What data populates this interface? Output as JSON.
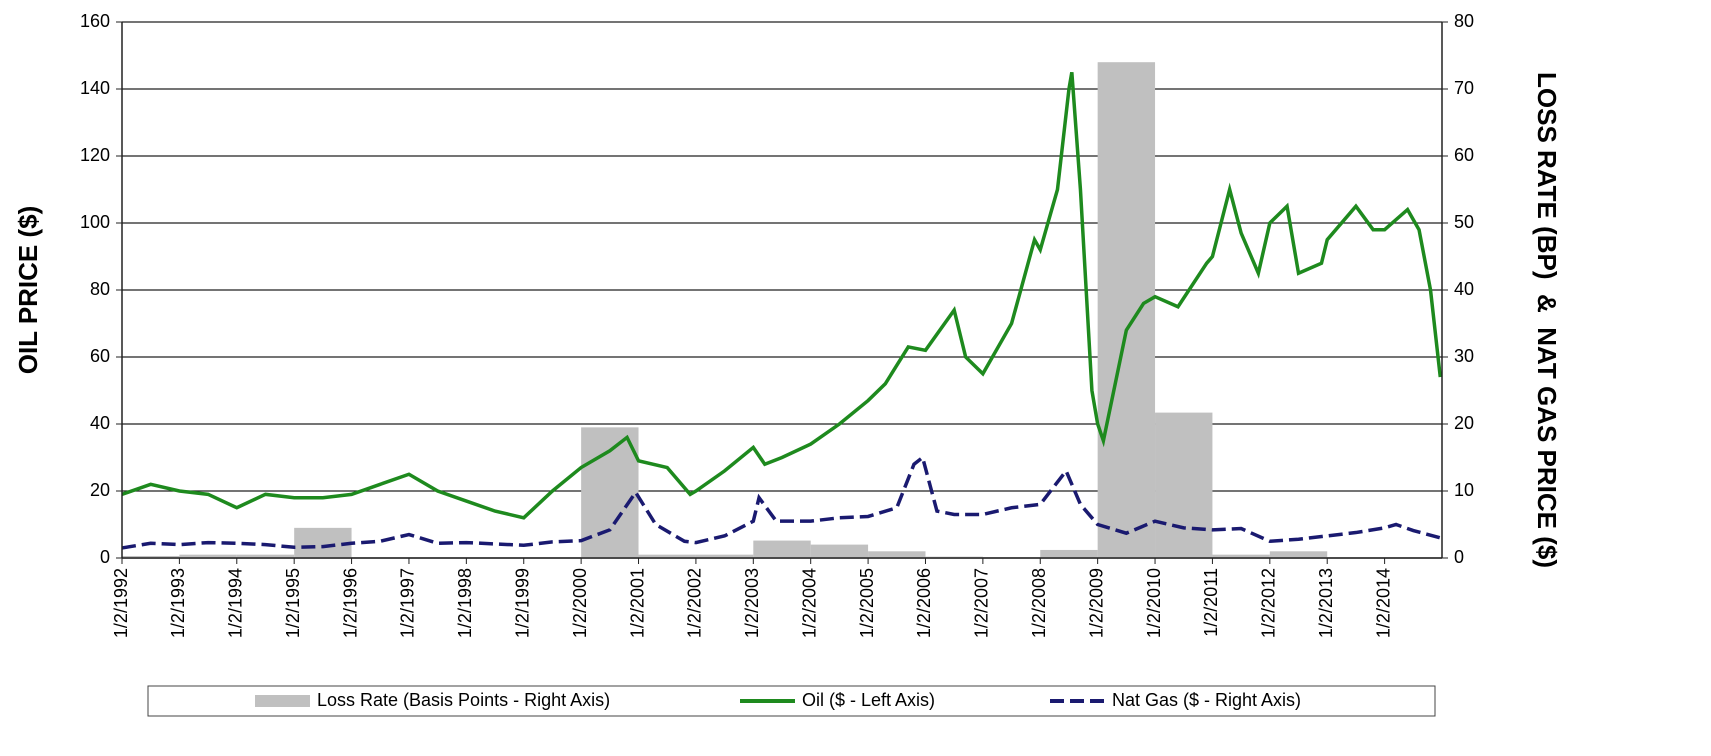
{
  "chart_data": {
    "type": "combo",
    "ylabel": "OIL PRICE ($)",
    "y2label": "LOSS RATE (BP)  &  NAT GAS PRICE ($)",
    "xlim": [
      1992,
      2015
    ],
    "xticks": [
      {
        "value": 1992,
        "label": "1/2/1992"
      },
      {
        "value": 1993,
        "label": "1/2/1993"
      },
      {
        "value": 1994,
        "label": "1/2/1994"
      },
      {
        "value": 1995,
        "label": "1/2/1995"
      },
      {
        "value": 1996,
        "label": "1/2/1996"
      },
      {
        "value": 1997,
        "label": "1/2/1997"
      },
      {
        "value": 1998,
        "label": "1/2/1998"
      },
      {
        "value": 1999,
        "label": "1/2/1999"
      },
      {
        "value": 2000,
        "label": "1/2/2000"
      },
      {
        "value": 2001,
        "label": "1/2/2001"
      },
      {
        "value": 2002,
        "label": "1/2/2002"
      },
      {
        "value": 2003,
        "label": "1/2/2003"
      },
      {
        "value": 2004,
        "label": "1/2/2004"
      },
      {
        "value": 2005,
        "label": "1/2/2005"
      },
      {
        "value": 2006,
        "label": "1/2/2006"
      },
      {
        "value": 2007,
        "label": "1/2/2007"
      },
      {
        "value": 2008,
        "label": "1/2/2008"
      },
      {
        "value": 2009,
        "label": "1/2/2009"
      },
      {
        "value": 2010,
        "label": "1/2/2010"
      },
      {
        "value": 2011,
        "label": "1/2/2011"
      },
      {
        "value": 2012,
        "label": "1/2/2012"
      },
      {
        "value": 2013,
        "label": "1/2/2013"
      },
      {
        "value": 2014,
        "label": "1/2/2014"
      }
    ],
    "ylim": [
      0,
      160
    ],
    "yticks": [
      0,
      20,
      40,
      60,
      80,
      100,
      120,
      140,
      160
    ],
    "y2lim": [
      0,
      80
    ],
    "y2ticks": [
      0,
      10,
      20,
      30,
      40,
      50,
      60,
      70,
      80
    ],
    "grid": true,
    "legend": "bottom",
    "series": [
      {
        "name": "Loss Rate (Basis Points - Right Axis)",
        "kind": "bar",
        "axis": "y2",
        "color": "#c0c0c0",
        "x": [
          1992,
          1993,
          1994,
          1995,
          1996,
          1997,
          1998,
          1999,
          2000,
          2001,
          2002,
          2003,
          2004,
          2005,
          2006,
          2007,
          2008,
          2009,
          2010,
          2011,
          2012,
          2013,
          2014
        ],
        "values": [
          0.3,
          0.5,
          0.5,
          4.5,
          0,
          0,
          0,
          0,
          19.5,
          0.5,
          0.5,
          2.6,
          2,
          1,
          0.2,
          0,
          1.2,
          74,
          21.7,
          0.5,
          1,
          0,
          0
        ]
      },
      {
        "name": "Oil ($ - Left Axis)",
        "kind": "line",
        "axis": "y",
        "color": "#1e8a1e",
        "x": [
          1992,
          1992.5,
          1993,
          1993.5,
          1994,
          1994.5,
          1995,
          1995.5,
          1996,
          1996.5,
          1997,
          1997.5,
          1998,
          1998.5,
          1999,
          1999.5,
          2000,
          2000.5,
          2000.8,
          2001,
          2001.5,
          2001.9,
          2002,
          2002.5,
          2003,
          2003.2,
          2003.5,
          2004,
          2004.5,
          2005,
          2005.3,
          2005.7,
          2006,
          2006.5,
          2006.7,
          2007,
          2007.5,
          2007.9,
          2008,
          2008.3,
          2008.5,
          2008.55,
          2008.7,
          2008.9,
          2009,
          2009.1,
          2009.5,
          2009.8,
          2010,
          2010.4,
          2010.9,
          2011,
          2011.3,
          2011.5,
          2011.8,
          2012,
          2012.3,
          2012.5,
          2012.9,
          2013,
          2013.5,
          2013.8,
          2014,
          2014.4,
          2014.6,
          2014.8,
          2014.97
        ],
        "values": [
          19,
          22,
          20,
          19,
          15,
          19,
          18,
          18,
          19,
          22,
          25,
          20,
          17,
          14,
          12,
          20,
          27,
          32,
          36,
          29,
          27,
          19,
          20,
          26,
          33,
          28,
          30,
          34,
          40,
          47,
          52,
          63,
          62,
          74,
          60,
          55,
          70,
          95,
          92,
          110,
          140,
          145,
          110,
          50,
          40,
          35,
          68,
          76,
          78,
          75,
          88,
          90,
          110,
          97,
          85,
          100,
          105,
          85,
          88,
          95,
          105,
          98,
          98,
          104,
          98,
          80,
          54
        ]
      },
      {
        "name": "Nat Gas ($ - Right Axis)",
        "kind": "dashed",
        "axis": "y2",
        "color": "#1a1a70",
        "x": [
          1992,
          1992.5,
          1993,
          1993.5,
          1994,
          1994.5,
          1995,
          1995.5,
          1996,
          1996.5,
          1997,
          1997.5,
          1998,
          1998.5,
          1999,
          1999.5,
          2000,
          2000.5,
          2000.95,
          2001.3,
          2001.8,
          2002,
          2002.5,
          2003,
          2003.1,
          2003.4,
          2004,
          2004.5,
          2005,
          2005.5,
          2005.8,
          2005.95,
          2006.2,
          2006.5,
          2007,
          2007.5,
          2008,
          2008.45,
          2008.7,
          2009,
          2009.5,
          2010,
          2010.5,
          2011,
          2011.5,
          2012,
          2012.5,
          2013,
          2013.5,
          2014,
          2014.2,
          2014.5,
          2014.97
        ],
        "values": [
          1.5,
          2.2,
          2,
          2.3,
          2.2,
          2,
          1.6,
          1.7,
          2.2,
          2.5,
          3.5,
          2.2,
          2.3,
          2.1,
          1.9,
          2.4,
          2.6,
          4.2,
          9.8,
          5,
          2.5,
          2.3,
          3.3,
          5.5,
          9,
          5.5,
          5.5,
          6,
          6.2,
          7.5,
          14,
          15,
          7,
          6.5,
          6.5,
          7.5,
          8,
          13,
          8,
          5,
          3.7,
          5.5,
          4.5,
          4.2,
          4.4,
          2.5,
          2.8,
          3.3,
          3.8,
          4.5,
          5,
          4.1,
          3
        ]
      }
    ]
  }
}
